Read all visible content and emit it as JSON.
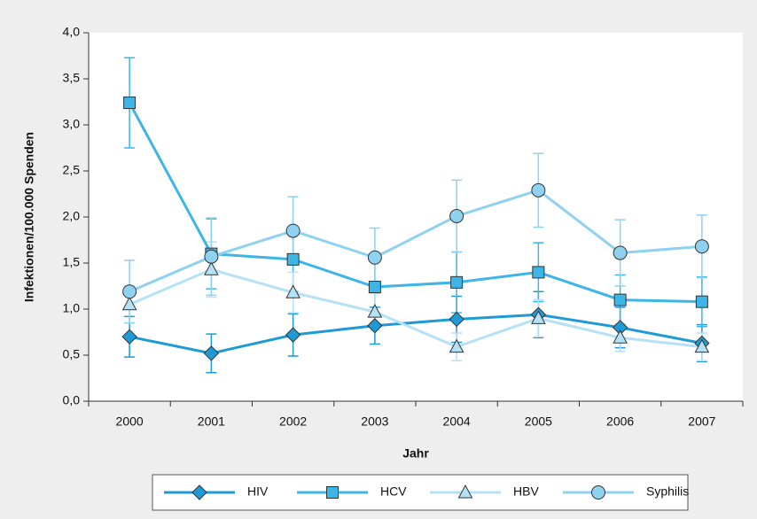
{
  "chart_data": {
    "type": "line",
    "x_label": "Jahr",
    "y_label": "Infektionen/100.000 Spenden",
    "categories": [
      "2000",
      "2001",
      "2002",
      "2003",
      "2004",
      "2005",
      "2006",
      "2007"
    ],
    "ylim": [
      0,
      4
    ],
    "yticks": [
      {
        "value": 0,
        "label": "0,0"
      },
      {
        "value": 0.5,
        "label": "0,5"
      },
      {
        "value": 1,
        "label": "1,0"
      },
      {
        "value": 1.5,
        "label": "1,5"
      },
      {
        "value": 2,
        "label": "2,0"
      },
      {
        "value": 2.5,
        "label": "2,5"
      },
      {
        "value": 3,
        "label": "3,0"
      },
      {
        "value": 3.5,
        "label": "3,5"
      },
      {
        "value": 4,
        "label": "4,0"
      }
    ],
    "grid": false,
    "series": [
      {
        "name": "HIV",
        "color": "#1e9ad6",
        "marker": "diamond",
        "values": [
          0.7,
          0.52,
          0.72,
          0.82,
          0.89,
          0.94,
          0.8,
          0.63
        ],
        "errors": [
          0.22,
          0.21,
          0.23,
          0.2,
          0.25,
          0.25,
          0.22,
          0.2
        ]
      },
      {
        "name": "HCV",
        "color": "#3db5e6",
        "marker": "square",
        "values": [
          3.24,
          1.6,
          1.54,
          1.24,
          1.29,
          1.4,
          1.1,
          1.08
        ],
        "errors": [
          0.49,
          0.38,
          0.35,
          0.3,
          0.33,
          0.32,
          0.27,
          0.27
        ]
      },
      {
        "name": "HBV",
        "color": "#b5e1f6",
        "marker": "triangle",
        "values": [
          1.05,
          1.43,
          1.18,
          0.97,
          0.59,
          0.9,
          0.69,
          0.59
        ],
        "errors": [
          0.2,
          0.3,
          0.22,
          0.2,
          0.15,
          0.2,
          0.15,
          0.15
        ]
      },
      {
        "name": "Syphilis",
        "color": "#8fd1f0",
        "marker": "circle",
        "values": [
          1.19,
          1.57,
          1.85,
          1.56,
          2.01,
          2.29,
          1.61,
          1.68
        ],
        "errors": [
          0.34,
          0.42,
          0.37,
          0.32,
          0.39,
          0.4,
          0.36,
          0.34
        ]
      }
    ]
  }
}
